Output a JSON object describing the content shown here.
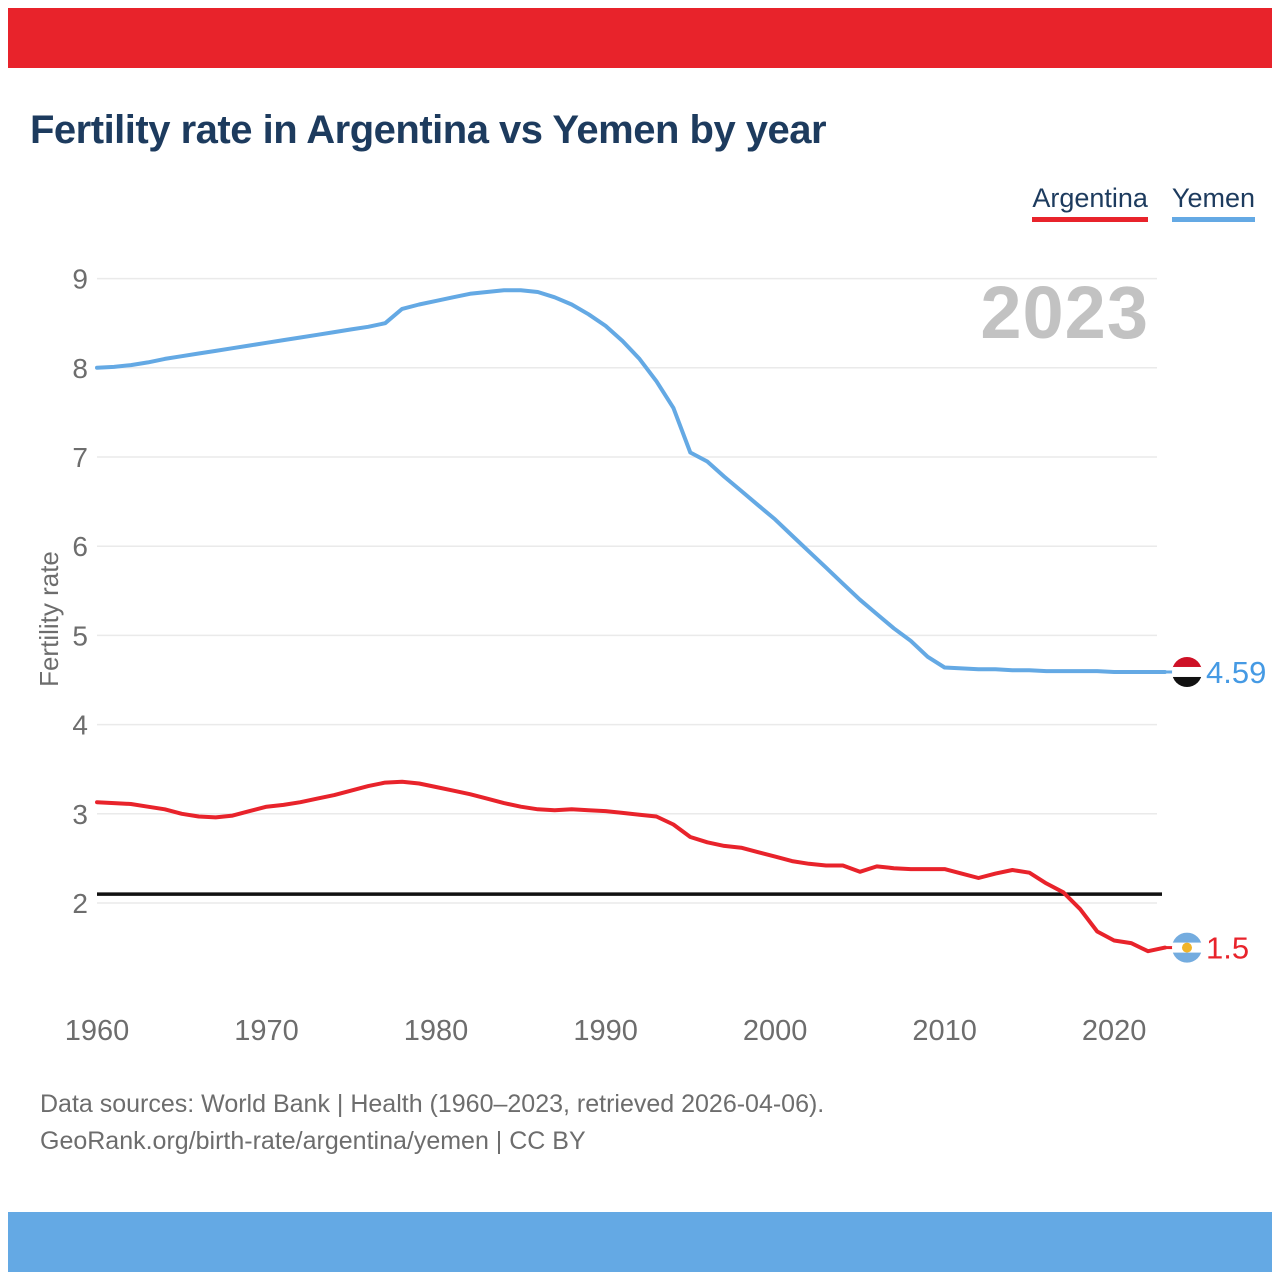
{
  "banner": {
    "top_color": "#e8232b",
    "bottom_color": "#64a9e4"
  },
  "header": {
    "title": "Fertility rate in Argentina vs Yemen by year"
  },
  "legend": {
    "items": [
      {
        "label": "Argentina",
        "color": "#e8232b"
      },
      {
        "label": "Yemen",
        "color": "#64a9e4"
      }
    ]
  },
  "watermark": "2023",
  "chart_data": {
    "type": "line",
    "title": "Fertility rate in Argentina vs Yemen by year",
    "xlabel": "",
    "ylabel": "Fertility rate",
    "grid": "horizontal",
    "legend_position": "top-right",
    "xlim": [
      1960,
      2023
    ],
    "ylim": [
      1.2,
      9.3
    ],
    "yticks": [
      2,
      3,
      4,
      5,
      6,
      7,
      8,
      9
    ],
    "xticks": [
      1960,
      1970,
      1980,
      1990,
      2000,
      2010,
      2020
    ],
    "reference_line": {
      "value": 2.1,
      "color": "#111111"
    },
    "x": [
      1960,
      1961,
      1962,
      1963,
      1964,
      1965,
      1966,
      1967,
      1968,
      1969,
      1970,
      1971,
      1972,
      1973,
      1974,
      1975,
      1976,
      1977,
      1978,
      1979,
      1980,
      1981,
      1982,
      1983,
      1984,
      1985,
      1986,
      1987,
      1988,
      1989,
      1990,
      1991,
      1992,
      1993,
      1994,
      1995,
      1996,
      1997,
      1998,
      1999,
      2000,
      2001,
      2002,
      2003,
      2004,
      2005,
      2006,
      2007,
      2008,
      2009,
      2010,
      2011,
      2012,
      2013,
      2014,
      2015,
      2016,
      2017,
      2018,
      2019,
      2020,
      2021,
      2022,
      2023
    ],
    "series": [
      {
        "name": "Argentina",
        "color": "#e8232b",
        "label_color": "#e8232b",
        "end_label": "1.5",
        "end_flag": "argentina-flag",
        "values": [
          3.13,
          3.12,
          3.11,
          3.08,
          3.05,
          3.0,
          2.97,
          2.96,
          2.98,
          3.03,
          3.08,
          3.1,
          3.13,
          3.17,
          3.21,
          3.26,
          3.31,
          3.35,
          3.36,
          3.34,
          3.3,
          3.26,
          3.22,
          3.17,
          3.12,
          3.08,
          3.05,
          3.04,
          3.05,
          3.04,
          3.03,
          3.01,
          2.99,
          2.97,
          2.88,
          2.74,
          2.68,
          2.64,
          2.62,
          2.57,
          2.52,
          2.47,
          2.44,
          2.42,
          2.42,
          2.35,
          2.41,
          2.39,
          2.38,
          2.38,
          2.38,
          2.33,
          2.28,
          2.33,
          2.37,
          2.34,
          2.22,
          2.12,
          1.93,
          1.68,
          1.58,
          1.55,
          1.46,
          1.5
        ]
      },
      {
        "name": "Yemen",
        "color": "#64a9e4",
        "label_color": "#459ae4",
        "end_label": "4.59",
        "end_flag": "yemen-flag",
        "values": [
          8.0,
          8.01,
          8.03,
          8.06,
          8.1,
          8.13,
          8.16,
          8.19,
          8.22,
          8.25,
          8.28,
          8.31,
          8.34,
          8.37,
          8.4,
          8.43,
          8.46,
          8.5,
          8.66,
          8.71,
          8.75,
          8.79,
          8.83,
          8.85,
          8.87,
          8.87,
          8.85,
          8.79,
          8.71,
          8.6,
          8.47,
          8.3,
          8.1,
          7.85,
          7.55,
          7.05,
          6.95,
          6.78,
          6.62,
          6.46,
          6.3,
          6.12,
          5.94,
          5.76,
          5.58,
          5.4,
          5.24,
          5.08,
          4.94,
          4.76,
          4.64,
          4.63,
          4.62,
          4.62,
          4.61,
          4.61,
          4.6,
          4.6,
          4.6,
          4.6,
          4.59,
          4.59,
          4.59,
          4.59
        ]
      }
    ],
    "flag_colors": {
      "yemen": [
        "#ce1126",
        "#ffffff",
        "#111111"
      ],
      "argentina": {
        "stripe": "#74acdf",
        "middle": "#ffffff",
        "sun": "#f0b429"
      }
    },
    "style": {
      "gridline_color": "#eaeaea",
      "tick_color": "#6d6d6d",
      "watermark_color": "#c2c2c2"
    }
  },
  "footer": {
    "line1": "Data sources: World Bank | Health (1960–2023, retrieved 2026-04-06).",
    "line2": "GeoRank.org/birth-rate/argentina/yemen | CC BY"
  }
}
